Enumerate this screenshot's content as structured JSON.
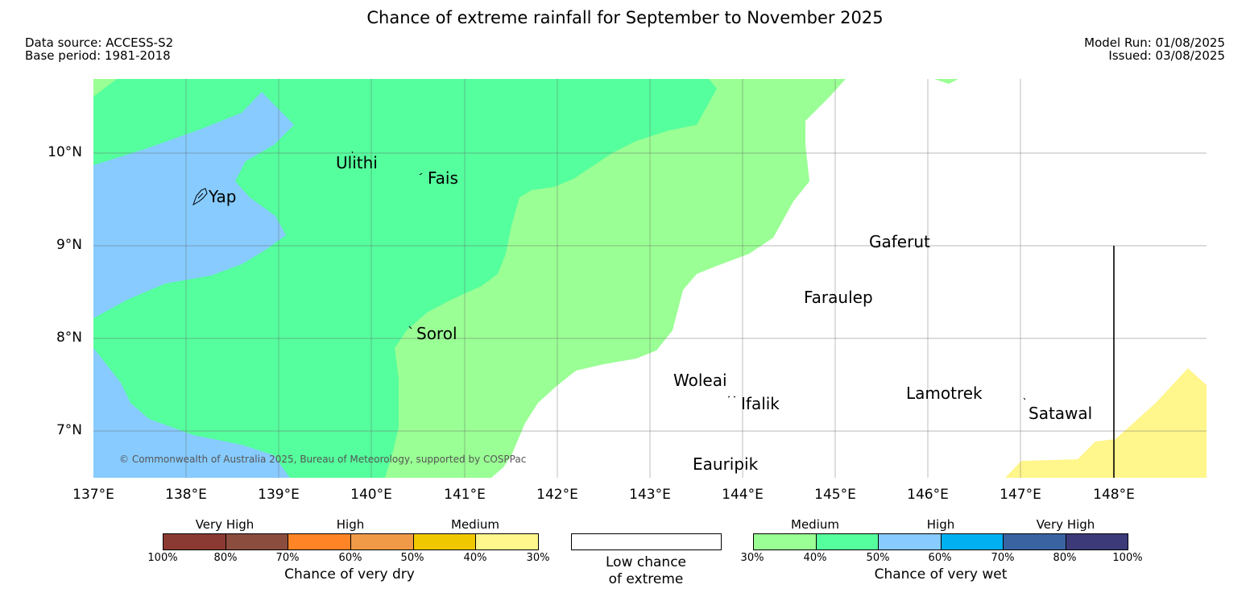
{
  "title": "Chance of extreme rainfall for September to November 2025",
  "meta": {
    "data_source": "Data source: ACCESS-S2",
    "base_period": "Base period: 1981-2018",
    "model_run": "Model Run: 01/08/2025",
    "issued": "Issued: 03/08/2025"
  },
  "map": {
    "lon_range": [
      137,
      149
    ],
    "lat_range": [
      6.5,
      10.8
    ],
    "lat_labels": [
      "10°N",
      "9°N",
      "8°N",
      "7°N"
    ],
    "lon_labels": [
      "137°E",
      "138°E",
      "139°E",
      "140°E",
      "141°E",
      "142°E",
      "143°E",
      "144°E",
      "145°E",
      "146°E",
      "147°E",
      "148°E"
    ],
    "places": [
      {
        "name": "Yap"
      },
      {
        "name": "Ulithi"
      },
      {
        "name": "Fais"
      },
      {
        "name": "Gaferut"
      },
      {
        "name": "Faraulep"
      },
      {
        "name": "Sorol"
      },
      {
        "name": "Woleai"
      },
      {
        "name": "Ifalik"
      },
      {
        "name": "Lamotrek"
      },
      {
        "name": "Satawal"
      },
      {
        "name": "Eauripik"
      }
    ],
    "copyright": "© Commonwealth of Australia 2025, Bureau of Meteorology, supported by COSPPac",
    "colors": {
      "wet_medium_30_40": "#9aff94",
      "wet_medium_40_50": "#55ff9d",
      "wet_high_50_60": "#87cbff",
      "dry_medium_30_40": "#fff68c"
    }
  },
  "legend": {
    "dry": {
      "groups": [
        "Very High",
        "High",
        "Medium"
      ],
      "ticks": [
        "100%",
        "80%",
        "70%",
        "60%",
        "50%",
        "40%",
        "30%"
      ],
      "colors": [
        "#8b3a33",
        "#8b4d3d",
        "#ff8426",
        "#f09a48",
        "#f0c800",
        "#fff68c"
      ],
      "caption": "Chance of very dry"
    },
    "low": {
      "caption_line1": "Low chance",
      "caption_line2": "of extreme"
    },
    "wet": {
      "groups": [
        "Medium",
        "High",
        "Very High"
      ],
      "ticks": [
        "30%",
        "40%",
        "50%",
        "60%",
        "70%",
        "80%",
        "100%"
      ],
      "colors": [
        "#9aff94",
        "#55ff9d",
        "#87cbff",
        "#00b0f0",
        "#3a63a2",
        "#3d3a7a"
      ],
      "caption": "Chance of very wet"
    }
  }
}
